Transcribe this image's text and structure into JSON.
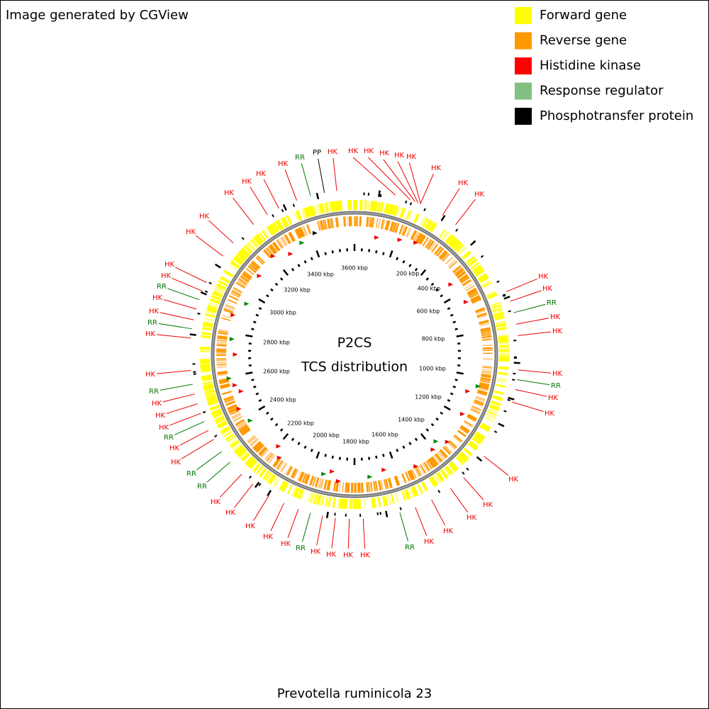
{
  "header": {
    "title": "Image generated by CGView"
  },
  "legend": [
    {
      "label": "Forward gene",
      "color": "#ffff00"
    },
    {
      "label": "Reverse gene",
      "color": "#ff9900"
    },
    {
      "label": "Histidine kinase",
      "color": "#ff0000"
    },
    {
      "label": "Response regulator",
      "color": "#80c080"
    },
    {
      "label": "Phosphotransfer protein",
      "color": "#000000"
    }
  ],
  "center": {
    "title": "P2CS",
    "subtitle": "TCS distribution"
  },
  "footer": {
    "organism": "Prevotella ruminicola 23"
  },
  "scale_labels": [
    "200 kbp",
    "400 kbp",
    "600 kbp",
    "800 kbp",
    "1000 kbp",
    "1200 kbp",
    "1400 kbp",
    "1600 kbp",
    "1800 kbp",
    "2000 kbp",
    "2200 kbp",
    "2400 kbp",
    "2600 kbp",
    "2800 kbp",
    "3000 kbp",
    "3200 kbp",
    "3400 kbp",
    "3600 kbp"
  ],
  "label_colors": {
    "HK": "#ee0000",
    "RR": "#007700",
    "PP": "#000000"
  },
  "feature_labels": [
    "RR",
    "PP",
    "HK",
    "HK",
    "HK",
    "HK",
    "HK",
    "HK",
    "HK",
    "HK",
    "HK",
    "HK",
    "HK",
    "RR",
    "HK",
    "HK",
    "HK",
    "RR",
    "HK",
    "HK",
    "HK",
    "HK",
    "HK",
    "HK",
    "HK",
    "RR",
    "HK",
    "HK",
    "HK",
    "HK",
    "RR",
    "HK",
    "HK",
    "HK",
    "HK",
    "HK",
    "RR",
    "RR",
    "HK",
    "HK",
    "RR",
    "HK",
    "HK",
    "HK",
    "RR",
    "HK",
    "HK",
    "RR",
    "HK",
    "HK",
    "RR",
    "HK",
    "HK",
    "HK",
    "HK",
    "HK",
    "HK",
    "HK",
    "HK"
  ]
}
